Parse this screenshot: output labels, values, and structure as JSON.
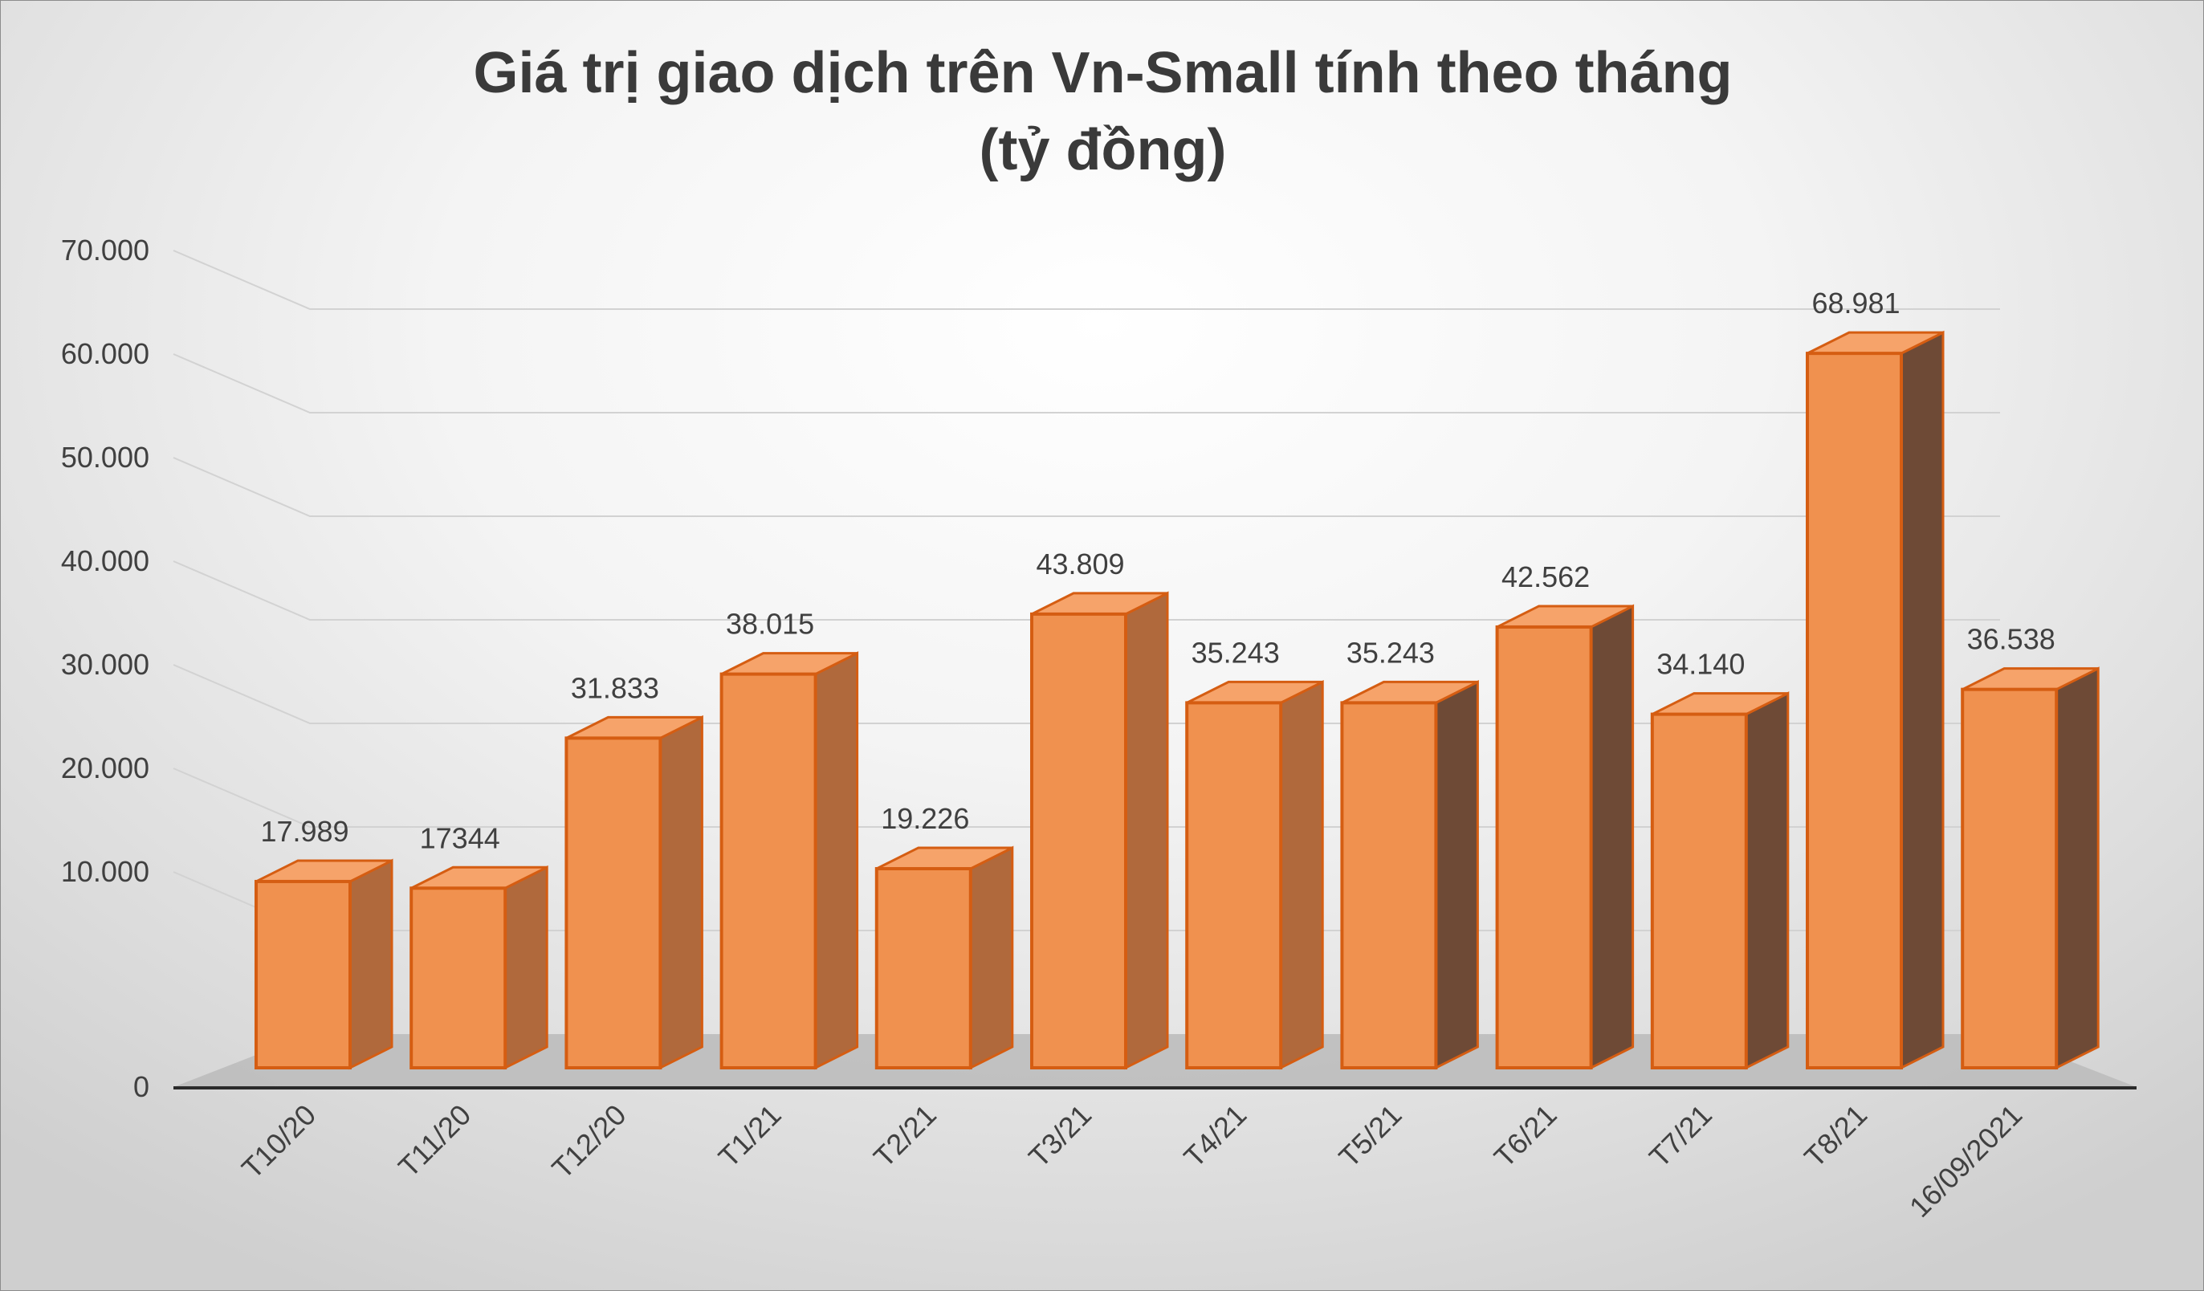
{
  "chart_data": {
    "type": "bar",
    "title": "Giá trị giao dịch trên Vn-Small tính theo tháng",
    "subtitle": "(tỷ đồng)",
    "categories": [
      "T10/20",
      "T11/20",
      "T12/20",
      "T1/21",
      "T2/21",
      "T3/21",
      "T4/21",
      "T5/21",
      "T6/21",
      "T7/21",
      "T8/21",
      "16/09/2021"
    ],
    "values": [
      17989,
      17344,
      31833,
      38015,
      19226,
      43809,
      35243,
      35243,
      42562,
      34140,
      68981,
      36538
    ],
    "data_labels": [
      "17.989",
      "17344",
      "31.833",
      "38.015",
      "19.226",
      "43.809",
      "35.243",
      "35.243",
      "42.562",
      "34.140",
      "68.981",
      "36.538"
    ],
    "y_ticks": [
      "0",
      "10.000",
      "20.000",
      "30.000",
      "40.000",
      "50.000",
      "60.000",
      "70.000"
    ],
    "ylim": [
      0,
      70000
    ],
    "xlabel": "",
    "ylabel": "",
    "grid": true,
    "legend": "none",
    "style": "3d-bar",
    "colors": {
      "bar_face": "#f0914f",
      "bar_edge": "#d55d12",
      "bar_side_light": "#b0693c",
      "bar_side_dark": "#6e4a36",
      "floor": "#bdbdbd",
      "axis": "#2a2a2a",
      "gridline": "#d2d2d2",
      "text": "#404040"
    }
  }
}
